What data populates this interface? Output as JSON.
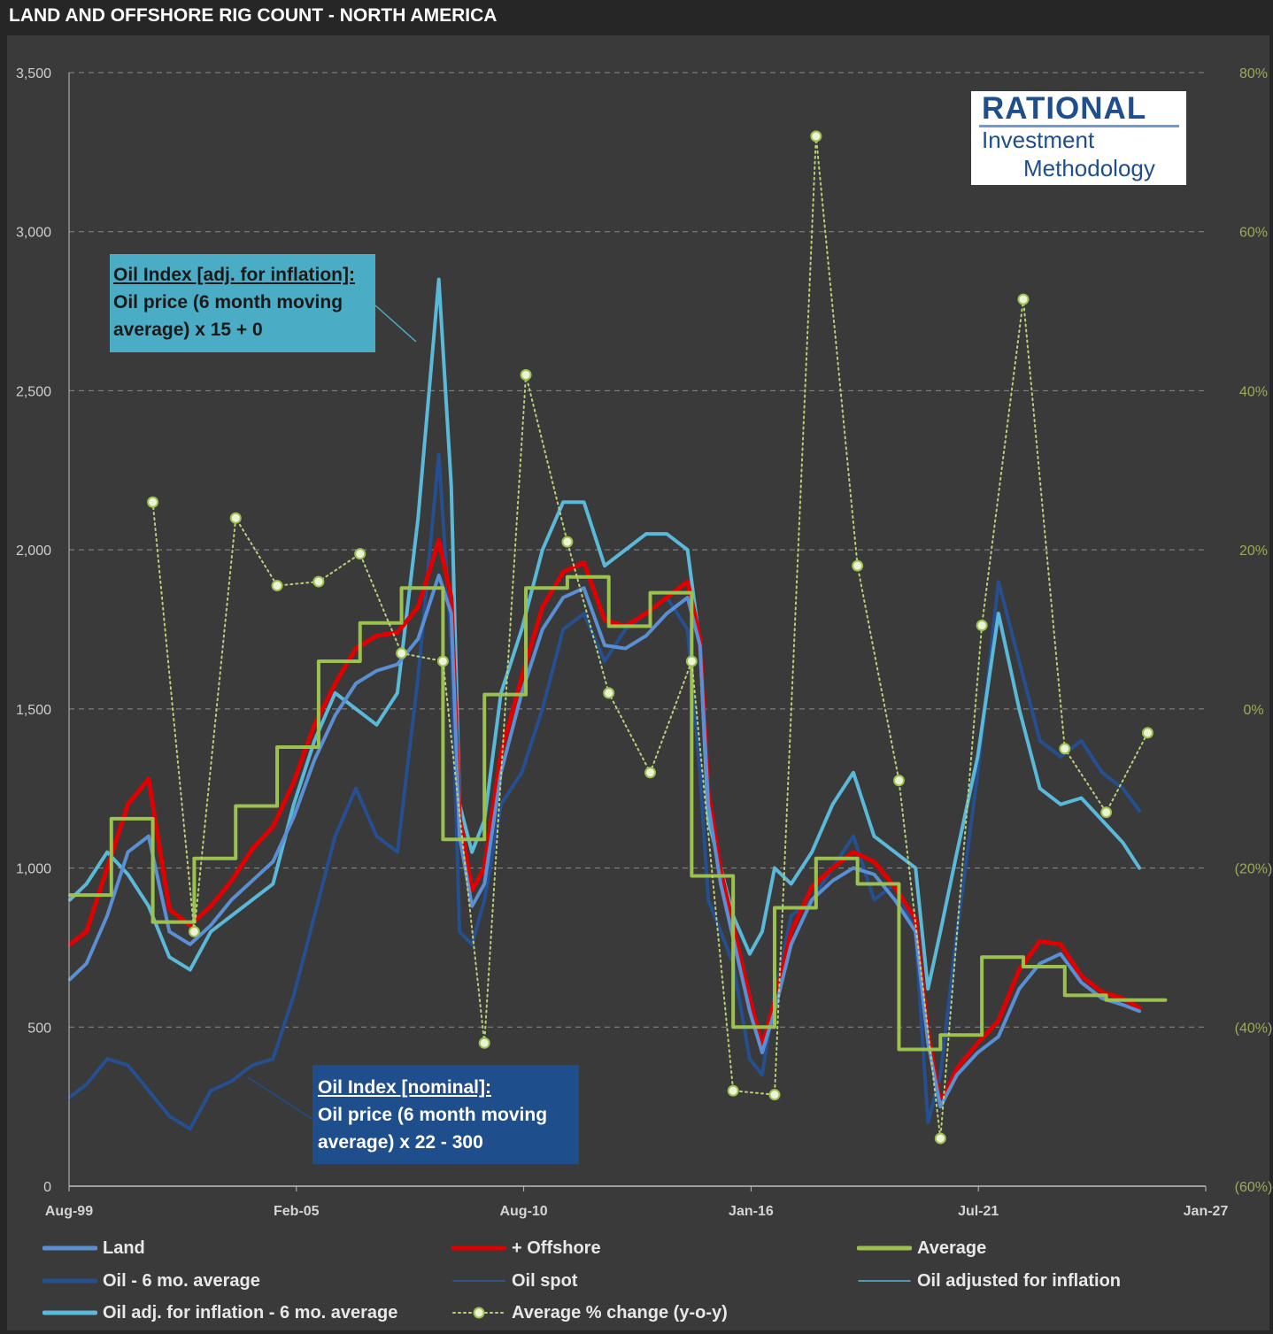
{
  "title": "LAND AND OFFSHORE RIG COUNT - NORTH AMERICA",
  "logo": {
    "line1": "RATIONAL",
    "line2": "Investment",
    "line3": "Methodology"
  },
  "annotations": {
    "inflation": {
      "title": "Oil Index [adj. for inflation]:",
      "line1": "Oil price (6 month moving",
      "line2": "average) x 15 + 0"
    },
    "nominal": {
      "title": "Oil Index [nominal]:",
      "line1": "Oil price (6 month moving",
      "line2": "average) x 22 - 300"
    }
  },
  "legend": [
    {
      "label": "Land",
      "color": "#5b8fd4",
      "style": "line-thick"
    },
    {
      "label": "+ Offshore",
      "color": "#e00000",
      "style": "line-thick"
    },
    {
      "label": "Average",
      "color": "#9bc24f",
      "style": "line-thick"
    },
    {
      "label": "Oil - 6 mo. average",
      "color": "#254f8f",
      "style": "line-thick"
    },
    {
      "label": "Oil spot",
      "color": "#2d5aa0",
      "style": "line-thin"
    },
    {
      "label": "Oil adjusted for inflation",
      "color": "#5ab8d8",
      "style": "line-thin"
    },
    {
      "label": "Oil adj. for inflation - 6 mo. average",
      "color": "#5ab8d8",
      "style": "line-thick"
    },
    {
      "label": "Average % change (y-o-y)",
      "color": "#b9d07a",
      "style": "dotted-marker"
    }
  ],
  "chart_data": {
    "type": "line",
    "title": "LAND AND OFFSHORE RIG COUNT - NORTH AMERICA",
    "x_ticks": [
      "Aug-99",
      "Feb-05",
      "Aug-10",
      "Jan-16",
      "Jul-21",
      "Jan-27"
    ],
    "x_range": [
      1999.58,
      2027.0
    ],
    "y_left": {
      "ticks": [
        "0",
        "500",
        "1,000",
        "1,500",
        "2,000",
        "2,500",
        "3,000",
        "3,500"
      ],
      "ylim": [
        0,
        3500
      ]
    },
    "y_right": {
      "ticks": [
        "(60%)",
        "(40%)",
        "(20%)",
        "0%",
        "20%",
        "40%",
        "60%",
        "80%"
      ],
      "ylim": [
        -60,
        80
      ]
    },
    "grid": "horizontal dashed",
    "legend_position": "bottom",
    "series": [
      {
        "name": "Land",
        "axis": "left",
        "color": "#5b8fd4",
        "width": 4,
        "x": [
          1999.6,
          2000.0,
          2000.5,
          2001.0,
          2001.5,
          2002.0,
          2002.5,
          2003.0,
          2003.5,
          2004.0,
          2004.5,
          2005.0,
          2005.5,
          2006.0,
          2006.5,
          2007.0,
          2007.5,
          2008.0,
          2008.5,
          2008.8,
          2009.0,
          2009.3,
          2009.6,
          2010.0,
          2010.5,
          2011.0,
          2011.5,
          2012.0,
          2012.5,
          2013.0,
          2013.5,
          2014.0,
          2014.5,
          2014.8,
          2015.0,
          2015.3,
          2015.6,
          2016.0,
          2016.3,
          2016.6,
          2017.0,
          2017.5,
          2018.0,
          2018.5,
          2019.0,
          2019.5,
          2020.0,
          2020.3,
          2020.6,
          2021.0,
          2021.5,
          2022.0,
          2022.5,
          2023.0,
          2023.5,
          2024.0,
          2024.5,
          2025.0,
          2025.4
        ],
        "y": [
          650,
          700,
          850,
          1050,
          1100,
          800,
          760,
          820,
          900,
          960,
          1020,
          1160,
          1340,
          1480,
          1580,
          1620,
          1640,
          1720,
          1920,
          1800,
          1100,
          880,
          950,
          1300,
          1550,
          1750,
          1850,
          1880,
          1700,
          1690,
          1730,
          1800,
          1850,
          1700,
          1200,
          950,
          780,
          550,
          420,
          550,
          760,
          900,
          960,
          1000,
          980,
          900,
          800,
          450,
          250,
          350,
          420,
          470,
          620,
          700,
          730,
          640,
          590,
          570,
          550
        ]
      },
      {
        "name": "+ Offshore",
        "axis": "left",
        "color": "#e00000",
        "width": 5,
        "x": [
          1999.6,
          2000.0,
          2000.5,
          2001.0,
          2001.5,
          2002.0,
          2002.5,
          2003.0,
          2003.5,
          2004.0,
          2004.5,
          2005.0,
          2005.5,
          2006.0,
          2006.5,
          2007.0,
          2007.5,
          2008.0,
          2008.5,
          2008.8,
          2009.0,
          2009.3,
          2009.6,
          2010.0,
          2010.5,
          2011.0,
          2011.5,
          2012.0,
          2012.5,
          2013.0,
          2013.5,
          2014.0,
          2014.5,
          2014.8,
          2015.0,
          2015.3,
          2015.6,
          2016.0,
          2016.3,
          2016.6,
          2017.0,
          2017.5,
          2018.0,
          2018.5,
          2019.0,
          2019.5,
          2020.0,
          2020.3,
          2020.6,
          2021.0,
          2021.5,
          2022.0,
          2022.5,
          2023.0,
          2023.5,
          2024.0,
          2024.5,
          2025.0,
          2025.4
        ],
        "y": [
          760,
          800,
          1000,
          1200,
          1280,
          870,
          820,
          880,
          960,
          1060,
          1130,
          1270,
          1450,
          1580,
          1690,
          1730,
          1740,
          1820,
          2030,
          1850,
          1160,
          930,
          1000,
          1360,
          1600,
          1820,
          1930,
          1960,
          1780,
          1760,
          1800,
          1850,
          1900,
          1720,
          1240,
          990,
          820,
          590,
          440,
          580,
          800,
          940,
          1000,
          1050,
          1020,
          940,
          840,
          480,
          260,
          370,
          450,
          520,
          680,
          770,
          760,
          660,
          610,
          590,
          560
        ]
      },
      {
        "name": "Oil - 6 mo. average",
        "axis": "left",
        "color": "#254f8f",
        "width": 4,
        "x": [
          1999.6,
          2000.0,
          2000.5,
          2001.0,
          2001.5,
          2002.0,
          2002.5,
          2003.0,
          2003.5,
          2004.0,
          2004.5,
          2005.0,
          2005.5,
          2006.0,
          2006.5,
          2007.0,
          2007.5,
          2008.0,
          2008.5,
          2008.8,
          2009.0,
          2009.3,
          2009.6,
          2010.0,
          2010.5,
          2011.0,
          2011.5,
          2012.0,
          2012.5,
          2013.0,
          2013.5,
          2014.0,
          2014.5,
          2014.8,
          2015.0,
          2015.3,
          2015.6,
          2016.0,
          2016.3,
          2016.6,
          2017.0,
          2017.5,
          2018.0,
          2018.5,
          2019.0,
          2019.5,
          2020.0,
          2020.3,
          2020.6,
          2021.0,
          2021.5,
          2022.0,
          2022.5,
          2023.0,
          2023.5,
          2024.0,
          2024.5,
          2025.0,
          2025.4
        ],
        "y": [
          280,
          320,
          400,
          380,
          300,
          220,
          180,
          300,
          330,
          380,
          400,
          600,
          850,
          1100,
          1250,
          1100,
          1050,
          1600,
          2300,
          1700,
          800,
          760,
          900,
          1200,
          1300,
          1500,
          1750,
          1800,
          1650,
          1750,
          1800,
          1850,
          1750,
          1300,
          900,
          800,
          700,
          400,
          350,
          600,
          850,
          900,
          1000,
          1100,
          900,
          950,
          800,
          200,
          350,
          800,
          1300,
          1900,
          1650,
          1400,
          1350,
          1400,
          1300,
          1250,
          1180
        ]
      },
      {
        "name": "Oil adj. for inflation - 6 mo. average",
        "axis": "left",
        "color": "#5ab8d8",
        "width": 4,
        "x": [
          1999.6,
          2000.0,
          2000.5,
          2001.0,
          2001.5,
          2002.0,
          2002.5,
          2003.0,
          2003.5,
          2004.0,
          2004.5,
          2005.0,
          2005.5,
          2006.0,
          2006.5,
          2007.0,
          2007.5,
          2008.0,
          2008.5,
          2008.8,
          2009.0,
          2009.3,
          2009.6,
          2010.0,
          2010.5,
          2011.0,
          2011.5,
          2012.0,
          2012.5,
          2013.0,
          2013.5,
          2014.0,
          2014.5,
          2014.8,
          2015.0,
          2015.3,
          2015.6,
          2016.0,
          2016.3,
          2016.6,
          2017.0,
          2017.5,
          2018.0,
          2018.5,
          2019.0,
          2019.5,
          2020.0,
          2020.3,
          2020.6,
          2021.0,
          2021.5,
          2022.0,
          2022.5,
          2023.0,
          2023.5,
          2024.0,
          2024.5,
          2025.0,
          2025.4
        ],
        "y": [
          900,
          950,
          1050,
          980,
          880,
          720,
          680,
          800,
          850,
          900,
          950,
          1200,
          1400,
          1550,
          1500,
          1450,
          1550,
          2100,
          2850,
          2200,
          1200,
          1050,
          1150,
          1550,
          1750,
          2000,
          2150,
          2150,
          1950,
          2000,
          2050,
          2050,
          2000,
          1700,
          1150,
          1000,
          850,
          730,
          800,
          1000,
          950,
          1050,
          1200,
          1300,
          1100,
          1050,
          1000,
          620,
          800,
          1050,
          1350,
          1800,
          1500,
          1250,
          1200,
          1220,
          1150,
          1080,
          1000
        ]
      },
      {
        "name": "Average",
        "axis": "left",
        "color": "#9bc24f",
        "width": 4,
        "shape": "step",
        "x": [
          1999.6,
          2000.6,
          2001.6,
          2002.6,
          2003.6,
          2004.6,
          2005.6,
          2006.6,
          2007.6,
          2008.6,
          2009.6,
          2010.6,
          2011.6,
          2012.6,
          2013.6,
          2014.6,
          2015.6,
          2016.6,
          2017.6,
          2018.6,
          2019.6,
          2020.6,
          2021.6,
          2022.6,
          2023.6,
          2024.6,
          2025.6
        ],
        "y": [
          915,
          1155,
          830,
          1030,
          1195,
          1380,
          1650,
          1770,
          1880,
          1090,
          1545,
          1880,
          1915,
          1760,
          1865,
          975,
          500,
          875,
          1030,
          950,
          430,
          475,
          720,
          690,
          600,
          585,
          585
        ]
      },
      {
        "name": "Average % change (y-o-y)",
        "axis": "right",
        "color": "#b9d07a",
        "width": 2,
        "shape": "dotted-marker",
        "x": [
          2001.6,
          2002.6,
          2003.6,
          2004.6,
          2005.6,
          2006.6,
          2007.6,
          2008.6,
          2009.6,
          2010.6,
          2011.6,
          2012.6,
          2013.6,
          2014.6,
          2015.6,
          2016.6,
          2017.6,
          2018.6,
          2019.6,
          2020.6,
          2021.6,
          2022.6,
          2023.6,
          2024.6,
          2025.6
        ],
        "y": [
          26,
          -28,
          24,
          15.5,
          16,
          19.5,
          7,
          6,
          -42,
          42,
          21,
          2,
          -8,
          6,
          -48,
          -48.5,
          72,
          18,
          -9,
          -54,
          10.5,
          51.5,
          -5,
          -13,
          -3
        ]
      }
    ]
  }
}
